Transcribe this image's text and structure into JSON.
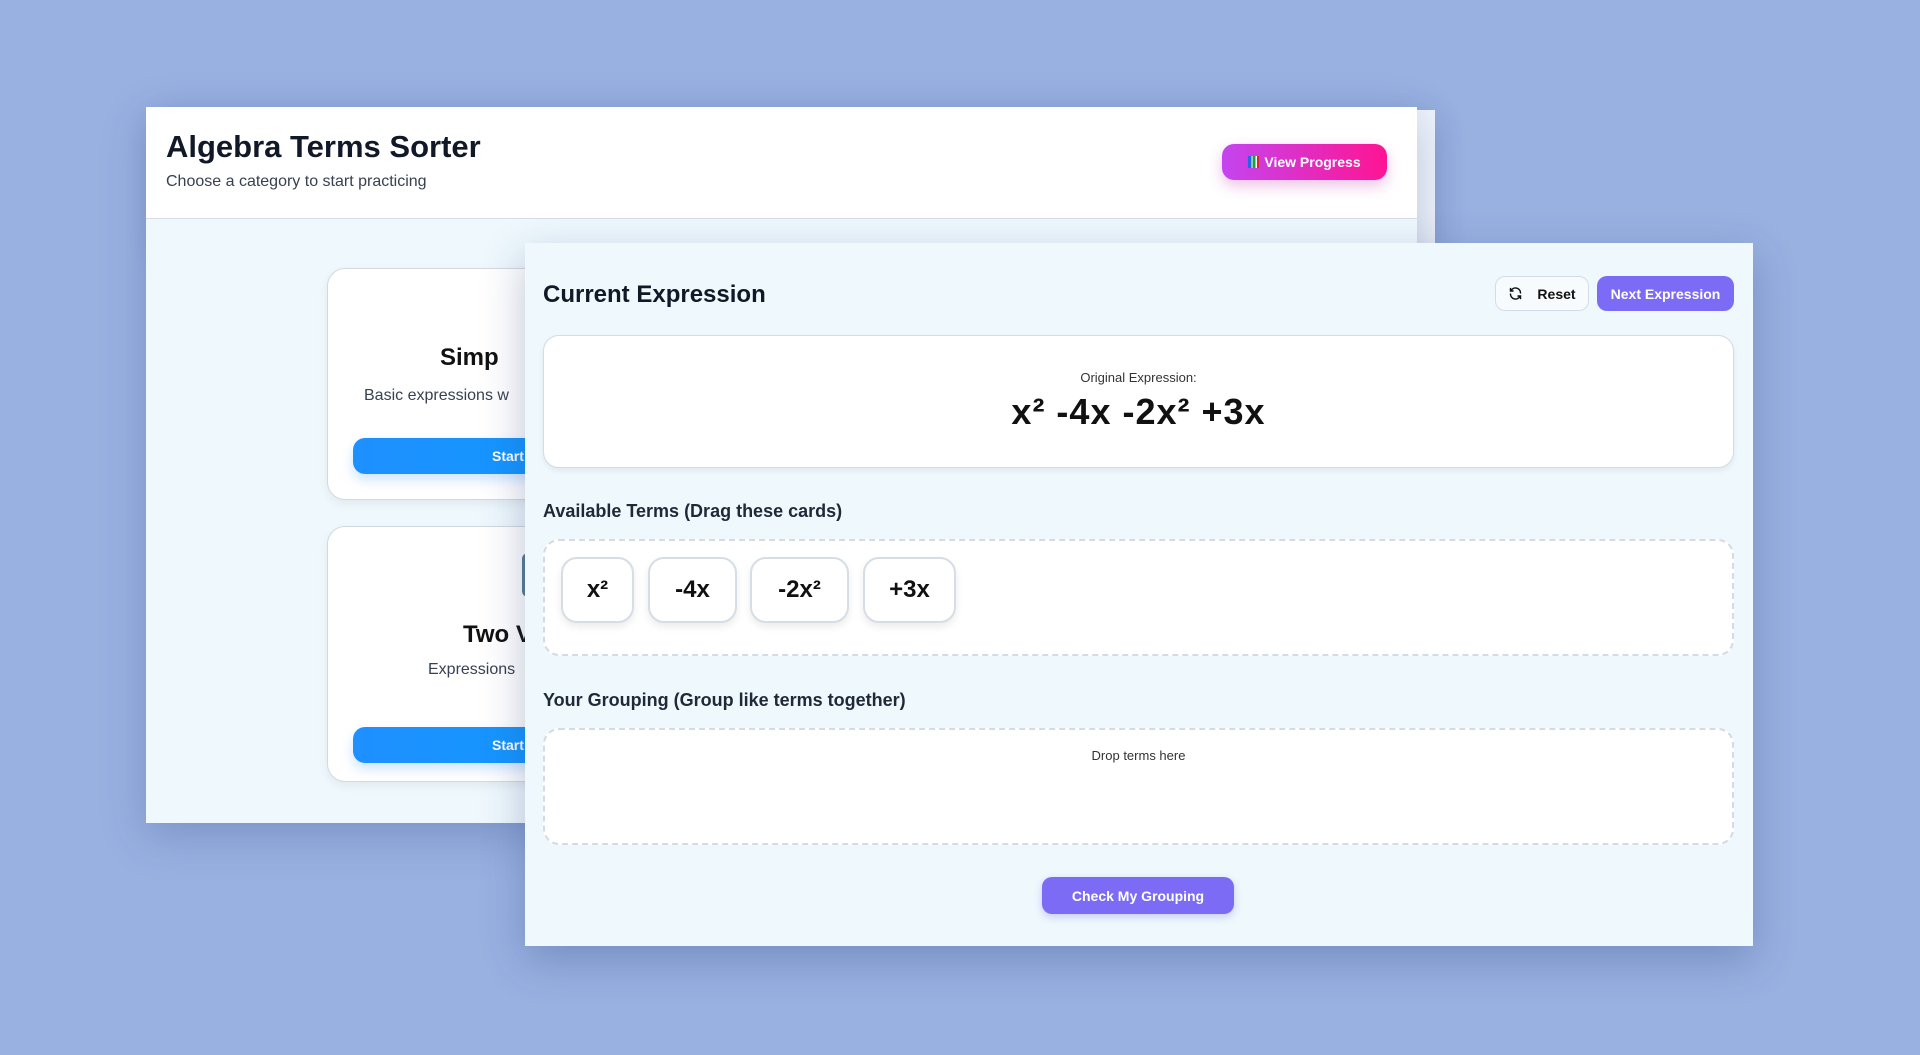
{
  "app": {
    "title": "Algebra Terms Sorter",
    "subtitle": "Choose a category to start practicing",
    "view_progress": "View Progress"
  },
  "categories": [
    {
      "title": "Simp",
      "description": "Basic expressions w",
      "start": "Start"
    },
    {
      "title": "Two V",
      "description": "Expressions",
      "start": "Start"
    }
  ],
  "panel": {
    "title": "Current Expression",
    "reset": "Reset",
    "next": "Next Expression",
    "original_label": "Original Expression:",
    "expression": "x² -4x -2x² +3x",
    "available_label": "Available Terms (Drag these cards)",
    "terms": [
      "x²",
      "-4x",
      "-2x²",
      "+3x"
    ],
    "grouping_label": "Your Grouping (Group like terms together)",
    "drop_placeholder": "Drop terms here",
    "check": "Check My Grouping"
  },
  "colors": {
    "background": "#98b1e1",
    "accent_purple": "#7c6cf5",
    "start_blue": "#1e90ff",
    "progress_gradient": [
      "#c445f0",
      "#ff1493"
    ]
  },
  "icons": {
    "view_progress": "bar-chart-icon",
    "reset": "refresh-icon"
  }
}
